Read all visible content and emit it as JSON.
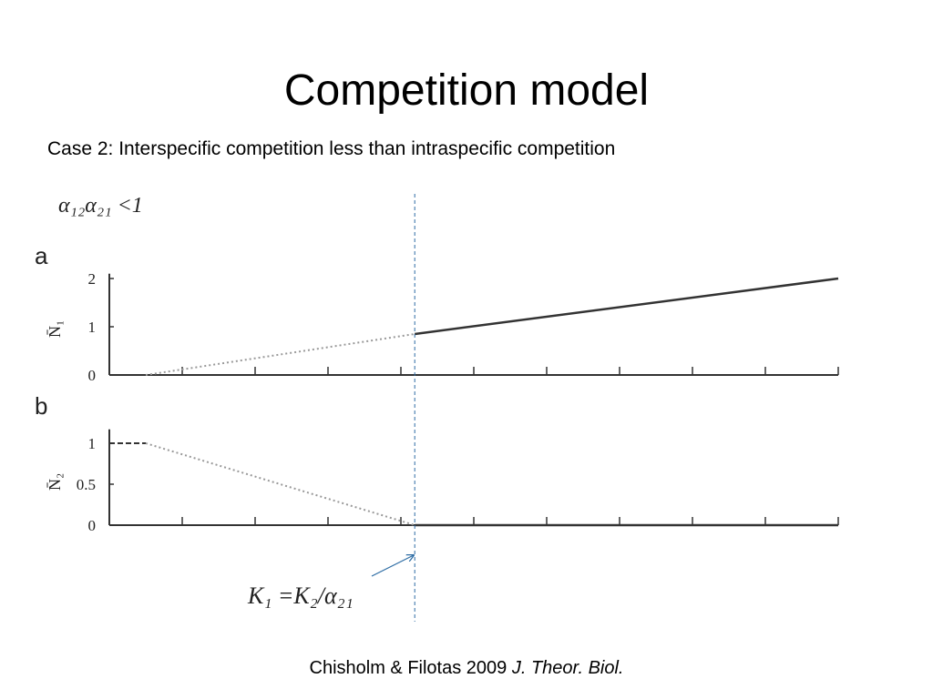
{
  "title": "Competition model",
  "subtitle": "Case 2: Interspecific competition less than intraspecific competition",
  "condition": "α₁₂α₂₁ <1",
  "annotation": "K₁ =K₂/α₂₁",
  "citation": {
    "authors": "Chisholm & Filotas 2009 ",
    "journal": "J. Theor. Biol."
  },
  "marker_x": 4.19,
  "chart_data": [
    {
      "type": "line",
      "panel": "a",
      "ylabel": "N̄₁",
      "xlim": [
        0,
        10
      ],
      "xticks": [
        0,
        1,
        2,
        3,
        4,
        5,
        6,
        7,
        8,
        9,
        10
      ],
      "ylim": [
        0,
        2.1
      ],
      "yticks": [
        0,
        1,
        2
      ],
      "series": [
        {
          "style": "dashed",
          "color": "#333333",
          "x": [
            0,
            0.5
          ],
          "values": [
            0,
            0
          ]
        },
        {
          "style": "dotted",
          "color": "#999999",
          "x": [
            0.5,
            4.19
          ],
          "values": [
            0,
            0.85
          ]
        },
        {
          "style": "solid",
          "color": "#333333",
          "x": [
            4.19,
            10
          ],
          "values": [
            0.85,
            2
          ]
        }
      ]
    },
    {
      "type": "line",
      "panel": "b",
      "ylabel": "N̄₂",
      "xlim": [
        0,
        10
      ],
      "xticks": [
        0,
        1,
        2,
        3,
        4,
        5,
        6,
        7,
        8,
        9,
        10
      ],
      "ylim": [
        0,
        1.17
      ],
      "yticks": [
        0,
        0.5,
        1
      ],
      "series": [
        {
          "style": "dashed",
          "color": "#333333",
          "x": [
            0,
            0.5
          ],
          "values": [
            1,
            1
          ]
        },
        {
          "style": "dotted",
          "color": "#999999",
          "x": [
            0.5,
            4.19
          ],
          "values": [
            1,
            0
          ]
        },
        {
          "style": "solid",
          "color": "#333333",
          "x": [
            4.19,
            10
          ],
          "values": [
            0,
            0
          ]
        }
      ]
    }
  ]
}
